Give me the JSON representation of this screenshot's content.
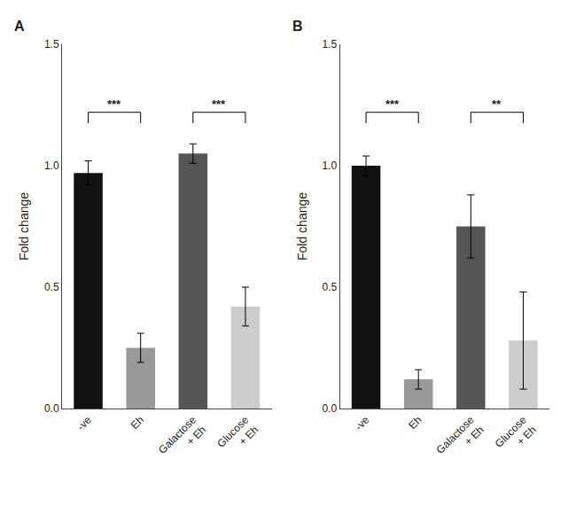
{
  "chart_data": [
    {
      "type": "bar",
      "title": "A",
      "categories": [
        "-ve",
        "Eh",
        "Galactose\n+ Eh",
        "Glucose\n+ Eh"
      ],
      "values": [
        0.97,
        0.25,
        1.05,
        0.42
      ],
      "errors": [
        0.05,
        0.06,
        0.04,
        0.08
      ],
      "colors": [
        "#111111",
        "#999999",
        "#555555",
        "#cccccc"
      ],
      "y_label": "Fold change",
      "ylim": [
        0.0,
        1.5
      ],
      "yticks": [
        {
          "value": 0,
          "label": "0.0"
        },
        0.5,
        {
          "value": 1,
          "label": "1.0"
        },
        1.5
      ],
      "grid": false,
      "annotations": [
        {
          "text": "***",
          "x1": 0,
          "x2": 1,
          "y": 1.22
        },
        {
          "text": "***",
          "x1": 2,
          "x2": 3,
          "y": 1.22
        }
      ]
    },
    {
      "type": "bar",
      "title": "B",
      "categories": [
        "-ve",
        "Eh",
        "Galactose\n+ Eh",
        "Glucose\n+ Eh"
      ],
      "values": [
        1.0,
        0.12,
        0.75,
        0.28
      ],
      "errors": [
        0.04,
        0.04,
        0.13,
        0.2
      ],
      "colors": [
        "#111111",
        "#999999",
        "#555555",
        "#cccccc"
      ],
      "y_label": "Fold change",
      "ylim": [
        0.0,
        1.5
      ],
      "yticks": [
        {
          "value": 0,
          "label": "0.0"
        },
        0.5,
        {
          "value": 1,
          "label": "1.0"
        },
        1.5
      ],
      "grid": false,
      "annotations": [
        {
          "text": "***",
          "x1": 0,
          "x2": 1,
          "y": 1.22
        },
        {
          "text": "**",
          "x1": 2,
          "x2": 3,
          "y": 1.22
        }
      ]
    }
  ]
}
